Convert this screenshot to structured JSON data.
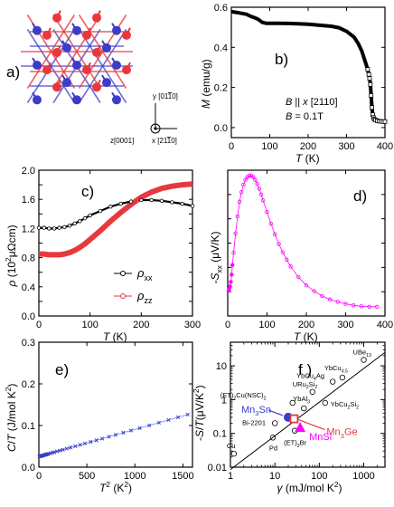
{
  "colors": {
    "red": "#e8383d",
    "blue": "#3c3cc8",
    "magenta": "#ff00ff",
    "blue_line": "#6a80ff",
    "black": "#000000"
  },
  "panel_a": {
    "label": "a)",
    "axes": [
      {
        "letter": "y",
        "index": "[01",
        "overbar": "1",
        "rest": "0]"
      },
      {
        "letter": "z",
        "index": "[0001]"
      },
      {
        "letter": "x",
        "index": "[21",
        "overbar": "1",
        "rest": "0]"
      }
    ]
  },
  "chart_data": [
    {
      "id": "b",
      "type": "line",
      "label": "b)",
      "xlabel": "T (K)",
      "ylabel": "M (emu/g)",
      "xlim": [
        0,
        400
      ],
      "ylim": [
        -0.05,
        0.6
      ],
      "xticks": [
        0,
        100,
        200,
        300,
        400
      ],
      "yticks": [
        0.0,
        0.2,
        0.4,
        0.6
      ],
      "annotations": [
        "B || x [2110]",
        "B = 0.1T"
      ],
      "series": [
        {
          "x": [
            0,
            10,
            20,
            40,
            50,
            60,
            70,
            80,
            90,
            100,
            120,
            150,
            180,
            200,
            230,
            260,
            280,
            300,
            320,
            330,
            340,
            345,
            350,
            355,
            358,
            360,
            362,
            364,
            366,
            368,
            370,
            372,
            375,
            380,
            385,
            390,
            395,
            400
          ],
          "y": [
            0.578,
            0.575,
            0.572,
            0.565,
            0.555,
            0.548,
            0.54,
            0.525,
            0.52,
            0.52,
            0.52,
            0.519,
            0.517,
            0.515,
            0.51,
            0.505,
            0.498,
            0.48,
            0.45,
            0.42,
            0.38,
            0.35,
            0.32,
            0.29,
            0.265,
            0.245,
            0.215,
            0.16,
            0.1,
            0.065,
            0.05,
            0.042,
            0.038,
            0.034,
            0.032,
            0.031,
            0.03,
            0.03
          ]
        }
      ]
    },
    {
      "id": "c",
      "type": "line",
      "label": "c)",
      "xlabel": "T (K)",
      "ylabel": "ρ (10²μΩcm)",
      "xlim": [
        0,
        300
      ],
      "ylim": [
        0,
        2.0
      ],
      "xticks": [
        0,
        100,
        200,
        300
      ],
      "yticks": [
        0.0,
        0.2,
        0.4,
        0.6,
        0.8,
        1.0,
        1.2,
        1.4,
        1.6,
        1.8,
        2.0
      ],
      "legend_position": "center-right",
      "series": [
        {
          "name": "ρxx",
          "legend_main": "ρ",
          "legend_sub": "xx",
          "x": [
            0,
            10,
            20,
            30,
            40,
            50,
            60,
            70,
            80,
            90,
            100,
            120,
            140,
            160,
            180,
            200,
            220,
            240,
            260,
            280,
            300
          ],
          "y": [
            1.21,
            1.21,
            1.2,
            1.2,
            1.21,
            1.22,
            1.24,
            1.27,
            1.3,
            1.34,
            1.38,
            1.44,
            1.5,
            1.54,
            1.57,
            1.59,
            1.59,
            1.58,
            1.56,
            1.54,
            1.51
          ]
        },
        {
          "name": "ρzz",
          "legend_main": "ρ",
          "legend_sub": "zz",
          "x": [
            0,
            10,
            20,
            30,
            40,
            50,
            60,
            70,
            80,
            90,
            100,
            120,
            140,
            160,
            180,
            200,
            220,
            240,
            260,
            280,
            300
          ],
          "y": [
            0.85,
            0.85,
            0.84,
            0.84,
            0.84,
            0.85,
            0.87,
            0.9,
            0.94,
            0.99,
            1.05,
            1.17,
            1.3,
            1.42,
            1.53,
            1.63,
            1.7,
            1.75,
            1.78,
            1.8,
            1.81
          ]
        }
      ]
    },
    {
      "id": "d",
      "type": "line",
      "label": "d)",
      "xlabel": "T (K)",
      "ylabel": "-Sxx (μV/K)",
      "ylabel_main": "-S",
      "ylabel_sub": "xx",
      "ylabel_unit": " (μV/K)",
      "xlim": [
        0,
        400
      ],
      "ylim": [
        -5,
        25
      ],
      "xticks": [
        0,
        100,
        200,
        300,
        400
      ],
      "yticks": [
        0,
        5,
        10,
        15,
        20,
        25
      ],
      "series": [
        {
          "x": [
            2,
            4,
            6,
            8,
            10,
            12,
            15,
            20,
            25,
            30,
            35,
            40,
            45,
            50,
            55,
            60,
            65,
            70,
            75,
            80,
            85,
            90,
            100,
            110,
            120,
            130,
            140,
            150,
            160,
            180,
            200,
            220,
            240,
            260,
            280,
            300,
            320,
            340,
            360,
            380
          ],
          "y": [
            0.2,
            0.6,
            1.1,
            2.0,
            3.5,
            5.5,
            8.0,
            12.0,
            15.5,
            18.5,
            20.5,
            22.0,
            23.0,
            23.6,
            23.9,
            23.9,
            23.6,
            23.0,
            22.2,
            21.2,
            20.0,
            18.8,
            16.4,
            14.0,
            11.8,
            9.8,
            8.1,
            6.6,
            5.2,
            3.0,
            1.3,
            0.1,
            -0.9,
            -1.6,
            -2.1,
            -2.5,
            -2.8,
            -3.0,
            -3.1,
            -3.1
          ]
        }
      ]
    },
    {
      "id": "e",
      "type": "line",
      "label": "e)",
      "xlabel": "T² (K²)",
      "xlabel_main": "T",
      "xlabel_sup": "2",
      "xlabel_unit": " (K",
      "ylabel": "C/T (J/mol K²)",
      "xlim": [
        0,
        1600
      ],
      "ylim": [
        0,
        0.3
      ],
      "xticks": [
        0,
        500,
        1000,
        1500
      ],
      "yticks": [
        0.0,
        0.1,
        0.2,
        0.3
      ],
      "series": [
        {
          "x": [
            5,
            10,
            15,
            20,
            25,
            30,
            40,
            50,
            60,
            70,
            80,
            90,
            100,
            120,
            140,
            160,
            190,
            220,
            250,
            290,
            330,
            380,
            430,
            480,
            540,
            600,
            660,
            730,
            800,
            880,
            960,
            1050,
            1150,
            1250,
            1350,
            1450,
            1550
          ],
          "y": [
            0.0255,
            0.026,
            0.0263,
            0.0267,
            0.027,
            0.0273,
            0.028,
            0.0287,
            0.0294,
            0.03,
            0.0307,
            0.0313,
            0.032,
            0.0333,
            0.0346,
            0.036,
            0.038,
            0.0399,
            0.0419,
            0.0445,
            0.0471,
            0.0503,
            0.0536,
            0.0568,
            0.0607,
            0.0646,
            0.0685,
            0.0731,
            0.0776,
            0.0828,
            0.088,
            0.0938,
            0.1003,
            0.1068,
            0.1133,
            0.1198,
            0.1263
          ]
        }
      ]
    },
    {
      "id": "f",
      "type": "scatter",
      "label": "f )",
      "xlabel": "γ (mJ/mol K²)",
      "ylabel": "-S/T (μV/K²)",
      "xscale": "log",
      "yscale": "log",
      "xlim": [
        1,
        3000
      ],
      "ylim": [
        0.01,
        50
      ],
      "xtick_labels": [
        "1",
        "10",
        "100",
        "1000"
      ],
      "ytick_labels": [
        "0.01",
        "0.1",
        "1",
        "10"
      ],
      "reference_line": {
        "x": [
          1,
          3000
        ],
        "y": [
          0.0085,
          25
        ]
      },
      "points": [
        {
          "name": "UBe13",
          "x": 1000,
          "y": 15,
          "main": "UBe",
          "sub": "13"
        },
        {
          "name": "YbCu4.5",
          "x": 330,
          "y": 4.5,
          "main": "YbCu",
          "sub": "4.5"
        },
        {
          "name": "YbCu4Ag",
          "x": 200,
          "y": 3.4,
          "main": "YbCu",
          "sub": "4",
          "tail": "Ag"
        },
        {
          "name": "URu2Si2",
          "x": 70,
          "y": 1.7,
          "main": "URu",
          "sub": "2",
          "tail": "Si",
          "sub2": "2"
        },
        {
          "name": "YbAl3",
          "x": 45,
          "y": 0.55,
          "main": "YbAl",
          "sub": "3"
        },
        {
          "name": "YbCu2Si2",
          "x": 135,
          "y": 0.8,
          "main": "YbCu",
          "sub": "2",
          "tail": "Si",
          "sub2": "2"
        },
        {
          "name": "(ET)2Cu(NSC)2",
          "x": 25,
          "y": 0.8,
          "main": "(ET)",
          "sub": "2",
          "tail": "Cu(NSC)",
          "sub2": "2"
        },
        {
          "name": "Bi-2201",
          "x": 10,
          "y": 0.2,
          "main": "Bi-2201"
        },
        {
          "name": "(ET)2Br",
          "x": 28,
          "y": 0.12,
          "main": "(ET)",
          "sub": "2",
          "tail": "Br"
        },
        {
          "name": "Pd",
          "x": 9,
          "y": 0.075,
          "main": "Pd"
        },
        {
          "name": "Cu",
          "x": 0.7,
          "y": 0.025,
          "main": "Cu"
        }
      ],
      "highlights": [
        {
          "name": "Mn3Sn",
          "x": 20,
          "y": 0.3,
          "main": "Mn",
          "sub": "3",
          "tail": "Sn",
          "color": "blue"
        },
        {
          "name": "Mn3Ge",
          "x": 27,
          "y": 0.27,
          "main": "Mn",
          "sub": "3",
          "tail": "Ge",
          "color": "red"
        },
        {
          "name": "MnSi",
          "x": 37,
          "y": 0.15,
          "main": "MnSi",
          "color": "magenta"
        }
      ]
    }
  ]
}
